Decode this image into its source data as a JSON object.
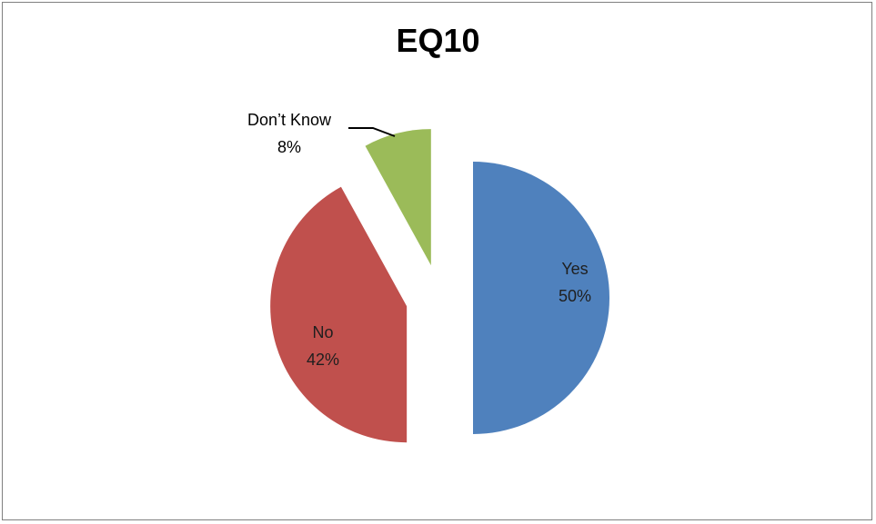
{
  "chart_data": {
    "type": "pie",
    "title": "EQ10",
    "slices": [
      {
        "label": "Yes",
        "value": 50,
        "value_label": "50%",
        "color": "#4f81bd",
        "label_color": "#1f1f1f"
      },
      {
        "label": "No",
        "value": 42,
        "value_label": "42%",
        "color": "#c0504d",
        "label_color": "#1f1f1f"
      },
      {
        "label": "Don’t Know",
        "value": 8,
        "value_label": "8%",
        "color": "#9bbb59",
        "label_color": "#000000"
      }
    ],
    "exploded": true,
    "legend": "none"
  }
}
